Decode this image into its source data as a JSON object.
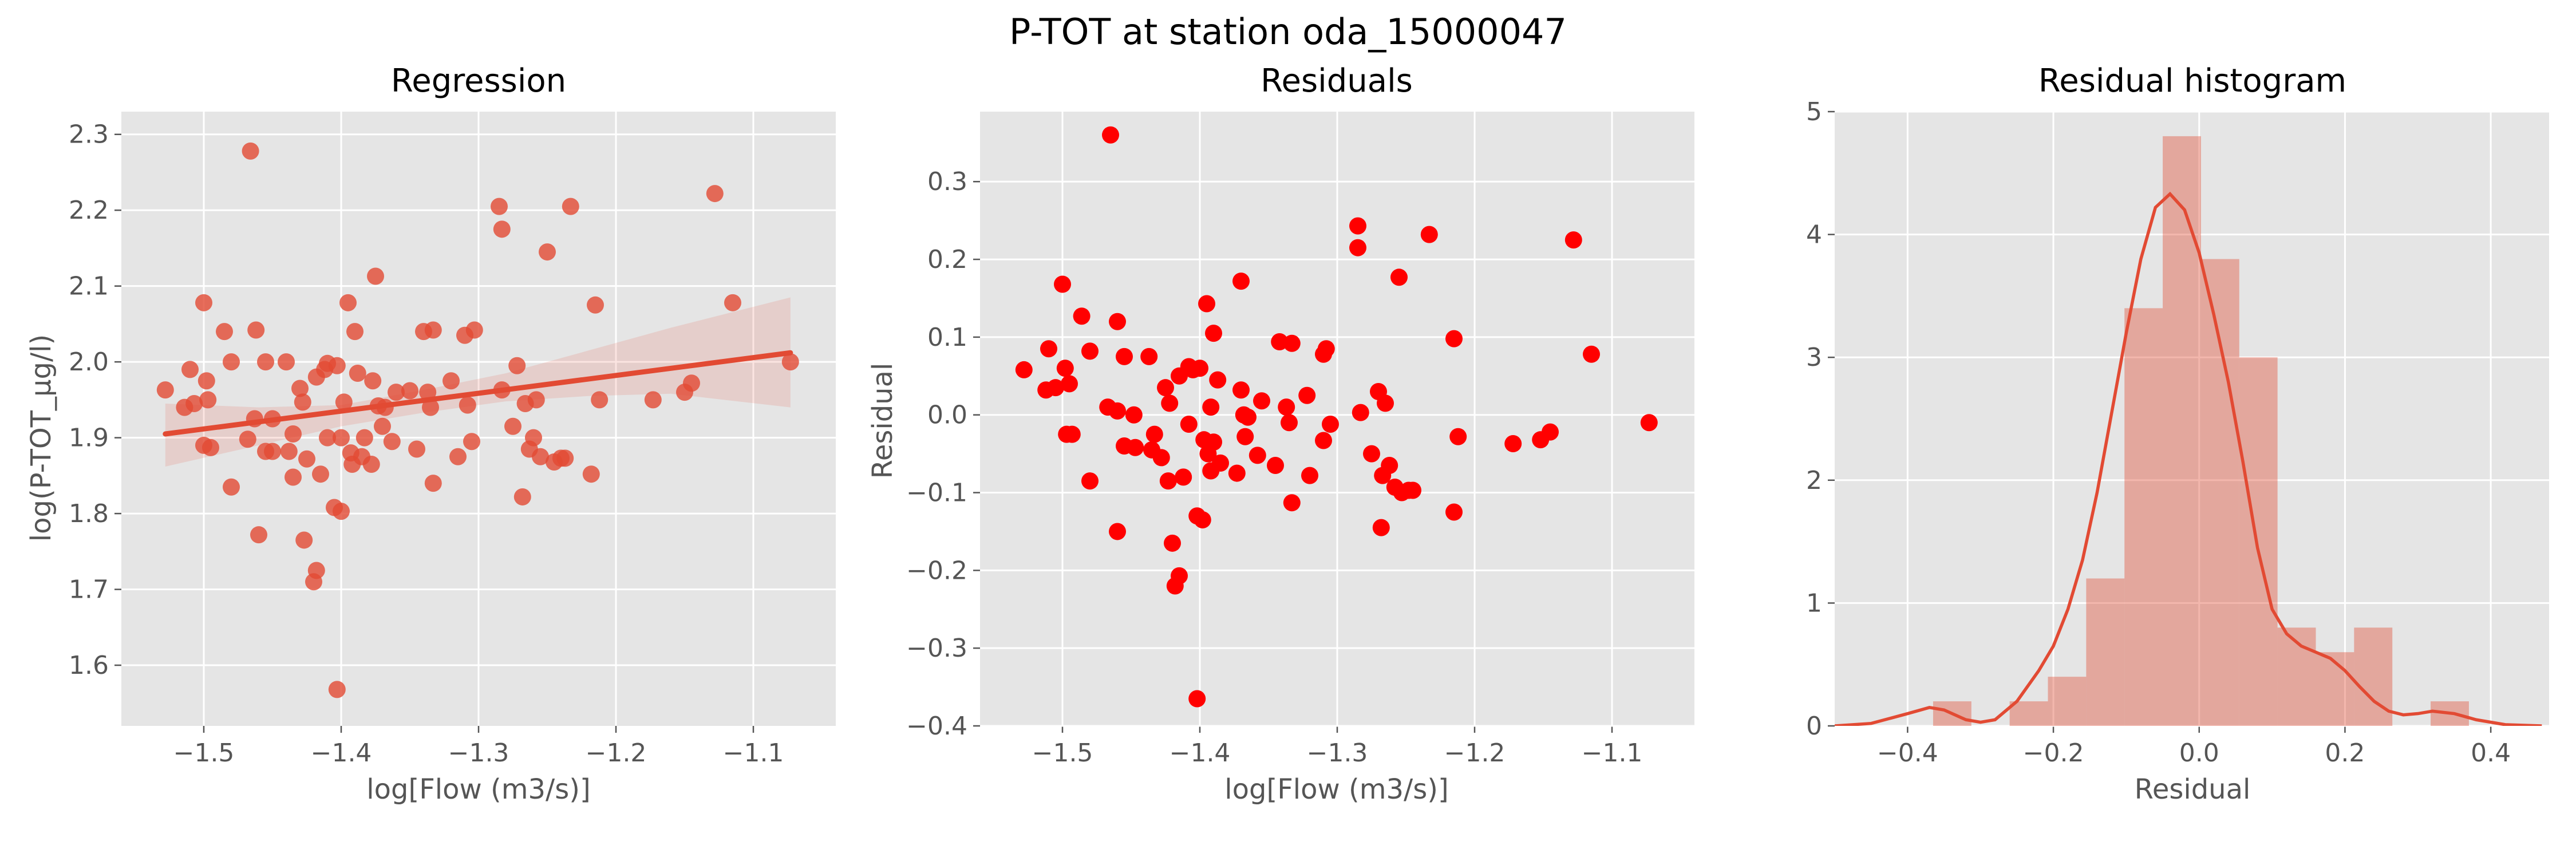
{
  "suptitle": "P-TOT at station oda_15000047",
  "chart_data": [
    {
      "type": "scatter",
      "title": "Regression",
      "xlabel": "log[Flow (m3/s)]",
      "ylabel": "log(P-TOT_µg/l)",
      "xlim": [
        -1.56,
        -1.04
      ],
      "ylim": [
        1.52,
        2.33
      ],
      "xticks": [
        {
          "v": -1.5,
          "label": "−1.5"
        },
        {
          "v": -1.4,
          "label": "−1.4"
        },
        {
          "v": -1.3,
          "label": "−1.3"
        },
        {
          "v": -1.2,
          "label": "−1.2"
        },
        {
          "v": -1.1,
          "label": "−1.1"
        }
      ],
      "yticks": [
        {
          "v": 1.6,
          "label": "1.6"
        },
        {
          "v": 1.7,
          "label": "1.7"
        },
        {
          "v": 1.8,
          "label": "1.8"
        },
        {
          "v": 1.9,
          "label": "1.9"
        },
        {
          "v": 2.0,
          "label": "2.0"
        },
        {
          "v": 2.1,
          "label": "2.1"
        },
        {
          "v": 2.2,
          "label": "2.2"
        },
        {
          "v": 2.3,
          "label": "2.3"
        }
      ],
      "grid": true,
      "point_color": "#e24a33",
      "line_color": "#e24a33",
      "points": [
        [
          -1.528,
          1.963
        ],
        [
          -1.51,
          1.99
        ],
        [
          -1.514,
          1.94
        ],
        [
          -1.507,
          1.945
        ],
        [
          -1.5,
          2.078
        ],
        [
          -1.498,
          1.975
        ],
        [
          -1.5,
          1.89
        ],
        [
          -1.497,
          1.95
        ],
        [
          -1.495,
          1.887
        ],
        [
          -1.485,
          2.04
        ],
        [
          -1.48,
          1.835
        ],
        [
          -1.48,
          2.0
        ],
        [
          -1.468,
          1.898
        ],
        [
          -1.466,
          2.278
        ],
        [
          -1.463,
          1.925
        ],
        [
          -1.462,
          2.042
        ],
        [
          -1.46,
          1.772
        ],
        [
          -1.455,
          1.882
        ],
        [
          -1.455,
          2.0
        ],
        [
          -1.45,
          1.925
        ],
        [
          -1.45,
          1.882
        ],
        [
          -1.44,
          2.0
        ],
        [
          -1.438,
          1.882
        ],
        [
          -1.435,
          1.848
        ],
        [
          -1.435,
          1.905
        ],
        [
          -1.43,
          1.965
        ],
        [
          -1.428,
          1.947
        ],
        [
          -1.427,
          1.765
        ],
        [
          -1.425,
          1.872
        ],
        [
          -1.42,
          1.71
        ],
        [
          -1.418,
          1.725
        ],
        [
          -1.418,
          1.98
        ],
        [
          -1.415,
          1.852
        ],
        [
          -1.412,
          1.99
        ],
        [
          -1.41,
          1.9
        ],
        [
          -1.41,
          1.998
        ],
        [
          -1.405,
          1.808
        ],
        [
          -1.403,
          1.568
        ],
        [
          -1.403,
          1.995
        ],
        [
          -1.4,
          1.803
        ],
        [
          -1.4,
          1.9
        ],
        [
          -1.398,
          1.947
        ],
        [
          -1.395,
          2.078
        ],
        [
          -1.393,
          1.88
        ],
        [
          -1.392,
          1.865
        ],
        [
          -1.39,
          2.04
        ],
        [
          -1.388,
          1.985
        ],
        [
          -1.385,
          1.875
        ],
        [
          -1.383,
          1.9
        ],
        [
          -1.378,
          1.865
        ],
        [
          -1.377,
          1.975
        ],
        [
          -1.375,
          2.113
        ],
        [
          -1.373,
          1.942
        ],
        [
          -1.37,
          1.915
        ],
        [
          -1.368,
          1.94
        ],
        [
          -1.363,
          1.895
        ],
        [
          -1.36,
          1.96
        ],
        [
          -1.35,
          1.962
        ],
        [
          -1.345,
          1.885
        ],
        [
          -1.34,
          2.04
        ],
        [
          -1.337,
          1.96
        ],
        [
          -1.335,
          1.94
        ],
        [
          -1.333,
          1.84
        ],
        [
          -1.333,
          2.042
        ],
        [
          -1.32,
          1.975
        ],
        [
          -1.315,
          1.875
        ],
        [
          -1.31,
          2.035
        ],
        [
          -1.308,
          1.943
        ],
        [
          -1.305,
          1.895
        ],
        [
          -1.303,
          2.042
        ],
        [
          -1.285,
          2.205
        ],
        [
          -1.283,
          2.175
        ],
        [
          -1.283,
          1.963
        ],
        [
          -1.275,
          1.915
        ],
        [
          -1.272,
          1.995
        ],
        [
          -1.268,
          1.822
        ],
        [
          -1.266,
          1.945
        ],
        [
          -1.263,
          1.885
        ],
        [
          -1.26,
          1.9
        ],
        [
          -1.258,
          1.95
        ],
        [
          -1.255,
          1.875
        ],
        [
          -1.25,
          2.145
        ],
        [
          -1.245,
          1.868
        ],
        [
          -1.24,
          1.873
        ],
        [
          -1.237,
          1.873
        ],
        [
          -1.233,
          2.205
        ],
        [
          -1.218,
          1.852
        ],
        [
          -1.215,
          2.075
        ],
        [
          -1.212,
          1.95
        ],
        [
          -1.173,
          1.95
        ],
        [
          -1.15,
          1.96
        ],
        [
          -1.145,
          1.972
        ],
        [
          -1.128,
          2.222
        ],
        [
          -1.115,
          2.078
        ],
        [
          -1.073,
          2.0
        ]
      ],
      "fit": {
        "x": [
          -1.528,
          -1.073
        ],
        "y": [
          1.905,
          2.012
        ]
      },
      "ci_band": {
        "x": [
          -1.528,
          -1.46,
          -1.4,
          -1.34,
          -1.28,
          -1.22,
          -1.16,
          -1.073
        ],
        "upper": [
          1.945,
          1.94,
          1.943,
          1.963,
          1.985,
          2.015,
          2.045,
          2.085
        ],
        "lower": [
          1.862,
          1.89,
          1.915,
          1.933,
          1.948,
          1.955,
          1.958,
          1.94
        ]
      }
    },
    {
      "type": "scatter",
      "title": "Residuals",
      "xlabel": "log[Flow (m3/s)]",
      "ylabel": "Residual",
      "xlim": [
        -1.56,
        -1.04
      ],
      "ylim": [
        -0.4,
        0.39
      ],
      "xticks": [
        {
          "v": -1.5,
          "label": "−1.5"
        },
        {
          "v": -1.4,
          "label": "−1.4"
        },
        {
          "v": -1.3,
          "label": "−1.3"
        },
        {
          "v": -1.2,
          "label": "−1.2"
        },
        {
          "v": -1.1,
          "label": "−1.1"
        }
      ],
      "yticks": [
        {
          "v": -0.4,
          "label": "−0.4"
        },
        {
          "v": -0.3,
          "label": "−0.3"
        },
        {
          "v": -0.2,
          "label": "−0.2"
        },
        {
          "v": -0.1,
          "label": "−0.1"
        },
        {
          "v": 0.0,
          "label": "0.0"
        },
        {
          "v": 0.1,
          "label": "0.1"
        },
        {
          "v": 0.2,
          "label": "0.2"
        },
        {
          "v": 0.3,
          "label": "0.3"
        }
      ],
      "grid": true,
      "point_color": "#ff0000",
      "points": [
        [
          -1.528,
          0.058
        ],
        [
          -1.51,
          0.085
        ],
        [
          -1.512,
          0.032
        ],
        [
          -1.505,
          0.035
        ],
        [
          -1.5,
          0.168
        ],
        [
          -1.498,
          0.06
        ],
        [
          -1.497,
          -0.025
        ],
        [
          -1.495,
          0.04
        ],
        [
          -1.493,
          -0.025
        ],
        [
          -1.486,
          0.127
        ],
        [
          -1.48,
          -0.085
        ],
        [
          -1.48,
          0.082
        ],
        [
          -1.467,
          0.01
        ],
        [
          -1.465,
          0.36
        ],
        [
          -1.46,
          0.005
        ],
        [
          -1.46,
          0.12
        ],
        [
          -1.46,
          -0.15
        ],
        [
          -1.455,
          -0.04
        ],
        [
          -1.455,
          0.075
        ],
        [
          -1.448,
          0.0
        ],
        [
          -1.447,
          -0.042
        ],
        [
          -1.437,
          0.075
        ],
        [
          -1.435,
          -0.045
        ],
        [
          -1.433,
          -0.025
        ],
        [
          -1.428,
          -0.055
        ],
        [
          -1.425,
          0.035
        ],
        [
          -1.423,
          -0.085
        ],
        [
          -1.422,
          0.015
        ],
        [
          -1.42,
          -0.165
        ],
        [
          -1.418,
          -0.22
        ],
        [
          -1.415,
          -0.207
        ],
        [
          -1.415,
          0.05
        ],
        [
          -1.412,
          -0.08
        ],
        [
          -1.408,
          0.062
        ],
        [
          -1.408,
          -0.012
        ],
        [
          -1.405,
          0.058
        ],
        [
          -1.402,
          -0.13
        ],
        [
          -1.402,
          -0.365
        ],
        [
          -1.4,
          0.06
        ],
        [
          -1.398,
          -0.135
        ],
        [
          -1.397,
          -0.032
        ],
        [
          -1.395,
          0.143
        ],
        [
          -1.394,
          -0.05
        ],
        [
          -1.392,
          0.01
        ],
        [
          -1.392,
          -0.072
        ],
        [
          -1.39,
          0.105
        ],
        [
          -1.39,
          -0.035
        ],
        [
          -1.387,
          0.045
        ],
        [
          -1.385,
          -0.062
        ],
        [
          -1.373,
          -0.075
        ],
        [
          -1.37,
          0.032
        ],
        [
          -1.37,
          0.172
        ],
        [
          -1.368,
          0.0
        ],
        [
          -1.367,
          -0.028
        ],
        [
          -1.365,
          -0.003
        ],
        [
          -1.358,
          -0.052
        ],
        [
          -1.355,
          0.018
        ],
        [
          -1.345,
          -0.065
        ],
        [
          -1.342,
          0.094
        ],
        [
          -1.337,
          0.01
        ],
        [
          -1.335,
          -0.01
        ],
        [
          -1.333,
          0.092
        ],
        [
          -1.333,
          -0.113
        ],
        [
          -1.322,
          0.025
        ],
        [
          -1.32,
          -0.078
        ],
        [
          -1.31,
          0.078
        ],
        [
          -1.31,
          -0.033
        ],
        [
          -1.308,
          0.085
        ],
        [
          -1.305,
          -0.012
        ],
        [
          -1.285,
          0.243
        ],
        [
          -1.285,
          0.215
        ],
        [
          -1.283,
          0.003
        ],
        [
          -1.275,
          -0.05
        ],
        [
          -1.27,
          0.03
        ],
        [
          -1.268,
          -0.145
        ],
        [
          -1.267,
          -0.078
        ],
        [
          -1.265,
          0.015
        ],
        [
          -1.262,
          -0.065
        ],
        [
          -1.258,
          -0.093
        ],
        [
          -1.255,
          0.177
        ],
        [
          -1.253,
          -0.1
        ],
        [
          -1.248,
          -0.097
        ],
        [
          -1.245,
          -0.097
        ],
        [
          -1.233,
          0.232
        ],
        [
          -1.215,
          -0.125
        ],
        [
          -1.215,
          0.098
        ],
        [
          -1.212,
          -0.028
        ],
        [
          -1.172,
          -0.037
        ],
        [
          -1.152,
          -0.032
        ],
        [
          -1.145,
          -0.022
        ],
        [
          -1.128,
          0.225
        ],
        [
          -1.115,
          0.078
        ],
        [
          -1.073,
          -0.01
        ]
      ]
    },
    {
      "type": "histogram",
      "title": "Residual histogram",
      "xlabel": "Residual",
      "ylabel": "",
      "xlim": [
        -0.5,
        0.48
      ],
      "ylim": [
        0,
        5
      ],
      "xticks": [
        {
          "v": -0.4,
          "label": "−0.4"
        },
        {
          "v": -0.2,
          "label": "−0.2"
        },
        {
          "v": 0.0,
          "label": "0.0"
        },
        {
          "v": 0.2,
          "label": "0.2"
        },
        {
          "v": 0.4,
          "label": "0.4"
        }
      ],
      "yticks": [
        {
          "v": 0,
          "label": "0"
        },
        {
          "v": 1,
          "label": "1"
        },
        {
          "v": 2,
          "label": "2"
        },
        {
          "v": 3,
          "label": "3"
        },
        {
          "v": 4,
          "label": "4"
        },
        {
          "v": 5,
          "label": "5"
        }
      ],
      "grid": true,
      "bar_color": "#e24a33",
      "bar_opacity": 0.4,
      "line_color": "#e24a33",
      "bin_edges": [
        -0.365,
        -0.3125,
        -0.26,
        -0.2075,
        -0.155,
        -0.1025,
        -0.05,
        0.0025,
        0.055,
        0.1075,
        0.16,
        0.2125,
        0.265,
        0.3175,
        0.37
      ],
      "densities": [
        0.2,
        0.0,
        0.2,
        0.4,
        1.2,
        3.4,
        4.8,
        3.8,
        3.0,
        0.8,
        0.6,
        0.8,
        0.0,
        0.2
      ],
      "kde": {
        "x": [
          -0.5,
          -0.45,
          -0.4,
          -0.37,
          -0.35,
          -0.32,
          -0.3,
          -0.28,
          -0.25,
          -0.22,
          -0.2,
          -0.18,
          -0.16,
          -0.14,
          -0.12,
          -0.1,
          -0.08,
          -0.06,
          -0.04,
          -0.02,
          0.0,
          0.02,
          0.04,
          0.06,
          0.08,
          0.1,
          0.12,
          0.14,
          0.16,
          0.18,
          0.2,
          0.22,
          0.24,
          0.26,
          0.28,
          0.3,
          0.32,
          0.35,
          0.38,
          0.42,
          0.47
        ],
        "y": [
          0.0,
          0.02,
          0.1,
          0.15,
          0.13,
          0.05,
          0.03,
          0.05,
          0.2,
          0.45,
          0.65,
          0.95,
          1.35,
          1.9,
          2.55,
          3.2,
          3.8,
          4.22,
          4.33,
          4.2,
          3.85,
          3.35,
          2.8,
          2.15,
          1.45,
          0.95,
          0.75,
          0.65,
          0.6,
          0.55,
          0.45,
          0.32,
          0.2,
          0.12,
          0.09,
          0.1,
          0.12,
          0.1,
          0.05,
          0.01,
          0.0
        ]
      }
    }
  ]
}
